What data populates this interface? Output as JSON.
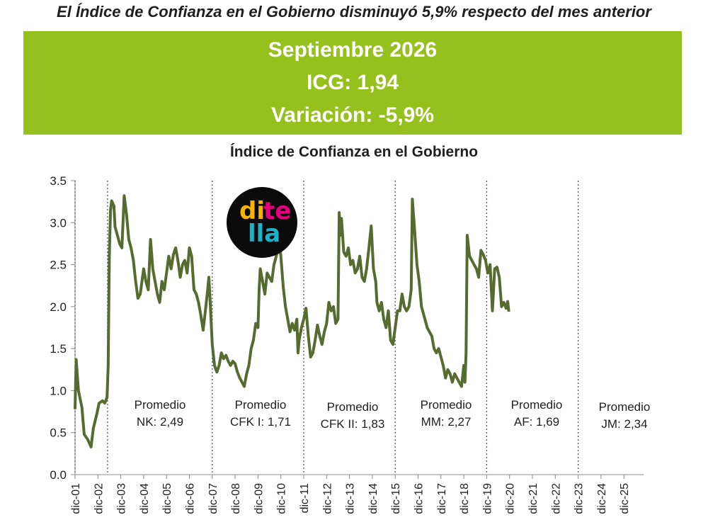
{
  "headline": "El Índice de Confianza en el Gobierno disminuyó 5,9% respecto del mes anterior",
  "banner": {
    "month": "Septiembre 2026",
    "icg": "ICG: 1,94",
    "variation": "Variación: -5,9%"
  },
  "logo": {
    "text": "ditella",
    "colors": [
      "#f6b400",
      "#e6007e",
      "#1bb3c7",
      "#7a3cff"
    ]
  },
  "chart_data": {
    "type": "line",
    "title": "Índice de Confianza en el Gobierno",
    "xlabel": "",
    "ylabel": "",
    "ylim": [
      0,
      3.5
    ],
    "yticks": [
      "0.0",
      "0.5",
      "1.0",
      "1.5",
      "2.0",
      "2.5",
      "3.0",
      "3.5"
    ],
    "x_tick_labels": [
      "dic-01",
      "dic-02",
      "dic-03",
      "dic-04",
      "dic-05",
      "dic-06",
      "dic-07",
      "dic-08",
      "dic-09",
      "dic-10",
      "dic-11",
      "dic-12",
      "dic-13",
      "dic-14",
      "dic-15",
      "dic-16",
      "dic-17",
      "dic-18",
      "dic-19",
      "dic-20",
      "dic-21",
      "dic-22",
      "dic-23",
      "dic-24",
      "dic-25"
    ],
    "line_color": "#556b2f",
    "grid": false,
    "period_dividers": [
      "dic-01",
      "dic-02 + 5 meses",
      "dic-07",
      "dic-11",
      "dic-15",
      "dic-19",
      "dic-23"
    ],
    "averages": [
      {
        "label": "Promedio",
        "value": "NK: 2,49"
      },
      {
        "label": "Promedio",
        "value": "CFK I: 1,71"
      },
      {
        "label": "Promedio",
        "value": "CFK II: 1,83"
      },
      {
        "label": "Promedio",
        "value": "MM: 2,27"
      },
      {
        "label": "Promedio",
        "value": "AF: 1,69"
      },
      {
        "label": "Promedio",
        "value": "JM: 2,34"
      }
    ],
    "series": [
      {
        "points": [
          [
            0,
            0.78
          ],
          [
            0.05,
            1.37
          ],
          [
            0.15,
            1.0
          ],
          [
            0.3,
            0.8
          ],
          [
            0.4,
            0.48
          ],
          [
            0.55,
            0.42
          ],
          [
            0.7,
            0.33
          ],
          [
            0.8,
            0.55
          ],
          [
            0.95,
            0.72
          ],
          [
            1.05,
            0.85
          ],
          [
            1.2,
            0.88
          ],
          [
            1.3,
            0.85
          ],
          [
            1.4,
            0.92
          ],
          [
            1.45,
            1.3
          ],
          [
            1.5,
            2.6
          ],
          [
            1.55,
            3.15
          ],
          [
            1.6,
            3.26
          ],
          [
            1.7,
            3.2
          ],
          [
            1.75,
            2.95
          ],
          [
            1.85,
            2.85
          ],
          [
            1.95,
            2.75
          ],
          [
            2.05,
            2.7
          ],
          [
            2.15,
            3.32
          ],
          [
            2.25,
            3.1
          ],
          [
            2.35,
            2.8
          ],
          [
            2.45,
            2.7
          ],
          [
            2.55,
            2.55
          ],
          [
            2.65,
            2.3
          ],
          [
            2.75,
            2.1
          ],
          [
            2.85,
            2.15
          ],
          [
            3.0,
            2.45
          ],
          [
            3.1,
            2.3
          ],
          [
            3.2,
            2.2
          ],
          [
            3.3,
            2.8
          ],
          [
            3.4,
            2.45
          ],
          [
            3.5,
            2.3
          ],
          [
            3.6,
            2.15
          ],
          [
            3.7,
            2.05
          ],
          [
            3.8,
            2.3
          ],
          [
            3.9,
            2.2
          ],
          [
            4.0,
            2.4
          ],
          [
            4.1,
            2.6
          ],
          [
            4.2,
            2.45
          ],
          [
            4.3,
            2.62
          ],
          [
            4.4,
            2.7
          ],
          [
            4.5,
            2.55
          ],
          [
            4.6,
            2.35
          ],
          [
            4.7,
            2.5
          ],
          [
            4.8,
            2.55
          ],
          [
            4.9,
            2.4
          ],
          [
            5.0,
            2.7
          ],
          [
            5.1,
            2.6
          ],
          [
            5.2,
            2.2
          ],
          [
            5.3,
            2.15
          ],
          [
            5.4,
            2.05
          ],
          [
            5.5,
            1.9
          ],
          [
            5.6,
            1.72
          ],
          [
            5.7,
            1.95
          ],
          [
            5.8,
            2.2
          ],
          [
            5.85,
            2.35
          ],
          [
            5.9,
            2.1
          ],
          [
            6.0,
            1.55
          ],
          [
            6.1,
            1.3
          ],
          [
            6.2,
            1.22
          ],
          [
            6.3,
            1.3
          ],
          [
            6.4,
            1.45
          ],
          [
            6.5,
            1.38
          ],
          [
            6.6,
            1.42
          ],
          [
            6.7,
            1.35
          ],
          [
            6.8,
            1.3
          ],
          [
            6.9,
            1.35
          ],
          [
            7.0,
            1.32
          ],
          [
            7.1,
            1.22
          ],
          [
            7.2,
            1.15
          ],
          [
            7.3,
            1.1
          ],
          [
            7.4,
            1.05
          ],
          [
            7.5,
            1.2
          ],
          [
            7.6,
            1.3
          ],
          [
            7.7,
            1.5
          ],
          [
            7.8,
            1.6
          ],
          [
            7.9,
            1.8
          ],
          [
            8.0,
            1.75
          ],
          [
            8.05,
            2.2
          ],
          [
            8.1,
            2.45
          ],
          [
            8.2,
            2.3
          ],
          [
            8.3,
            2.15
          ],
          [
            8.4,
            2.4
          ],
          [
            8.5,
            2.35
          ],
          [
            8.6,
            2.3
          ],
          [
            8.7,
            2.5
          ],
          [
            8.8,
            2.6
          ],
          [
            8.9,
            2.75
          ],
          [
            8.95,
            2.72
          ],
          [
            9.0,
            2.6
          ],
          [
            9.1,
            2.25
          ],
          [
            9.2,
            2.0
          ],
          [
            9.3,
            1.85
          ],
          [
            9.4,
            1.7
          ],
          [
            9.5,
            1.8
          ],
          [
            9.6,
            1.72
          ],
          [
            9.7,
            1.85
          ],
          [
            9.75,
            1.45
          ],
          [
            9.8,
            1.6
          ],
          [
            9.9,
            1.75
          ],
          [
            10.0,
            1.85
          ],
          [
            10.1,
            1.98
          ],
          [
            10.2,
            1.65
          ],
          [
            10.3,
            1.4
          ],
          [
            10.4,
            1.45
          ],
          [
            10.5,
            1.6
          ],
          [
            10.6,
            1.78
          ],
          [
            10.7,
            1.65
          ],
          [
            10.8,
            1.55
          ],
          [
            10.9,
            1.7
          ],
          [
            11.0,
            1.8
          ],
          [
            11.1,
            2.05
          ],
          [
            11.2,
            1.95
          ],
          [
            11.3,
            2.0
          ],
          [
            11.4,
            1.8
          ],
          [
            11.5,
            1.85
          ],
          [
            11.55,
            3.12
          ],
          [
            11.6,
            2.85
          ],
          [
            11.65,
            3.05
          ],
          [
            11.75,
            2.65
          ],
          [
            11.85,
            2.6
          ],
          [
            11.95,
            2.7
          ],
          [
            12.05,
            2.5
          ],
          [
            12.15,
            2.55
          ],
          [
            12.25,
            2.4
          ],
          [
            12.35,
            2.45
          ],
          [
            12.45,
            2.6
          ],
          [
            12.55,
            2.35
          ],
          [
            12.65,
            2.3
          ],
          [
            12.75,
            2.45
          ],
          [
            12.85,
            2.7
          ],
          [
            12.95,
            2.96
          ],
          [
            13.05,
            2.45
          ],
          [
            13.15,
            2.3
          ],
          [
            13.2,
            2.05
          ],
          [
            13.3,
            1.95
          ],
          [
            13.4,
            2.05
          ],
          [
            13.5,
            1.85
          ],
          [
            13.6,
            1.75
          ],
          [
            13.7,
            1.95
          ],
          [
            13.8,
            1.6
          ],
          [
            13.9,
            1.55
          ],
          [
            14.0,
            1.75
          ],
          [
            14.1,
            1.95
          ],
          [
            14.2,
            1.95
          ],
          [
            14.3,
            2.15
          ],
          [
            14.4,
            2.0
          ],
          [
            14.5,
            1.95
          ],
          [
            14.6,
            2.0
          ],
          [
            14.7,
            2.2
          ],
          [
            14.75,
            3.28
          ],
          [
            14.85,
            2.9
          ],
          [
            14.95,
            2.5
          ],
          [
            15.05,
            2.3
          ],
          [
            15.15,
            2.0
          ],
          [
            15.2,
            1.95
          ],
          [
            15.3,
            1.85
          ],
          [
            15.4,
            1.75
          ],
          [
            15.5,
            1.7
          ],
          [
            15.6,
            1.65
          ],
          [
            15.7,
            1.5
          ],
          [
            15.8,
            1.45
          ],
          [
            15.9,
            1.5
          ],
          [
            16.0,
            1.4
          ],
          [
            16.1,
            1.3
          ],
          [
            16.2,
            1.15
          ],
          [
            16.3,
            1.25
          ],
          [
            16.4,
            1.2
          ],
          [
            16.5,
            1.1
          ],
          [
            16.6,
            1.2
          ],
          [
            16.7,
            1.15
          ],
          [
            16.8,
            1.1
          ],
          [
            16.9,
            1.05
          ],
          [
            17.0,
            1.3
          ],
          [
            17.05,
            1.1
          ],
          [
            17.1,
            1.45
          ],
          [
            17.15,
            2.85
          ],
          [
            17.25,
            2.6
          ],
          [
            17.35,
            2.55
          ],
          [
            17.45,
            2.5
          ],
          [
            17.55,
            2.45
          ],
          [
            17.65,
            2.35
          ],
          [
            17.75,
            2.67
          ],
          [
            17.85,
            2.62
          ],
          [
            17.95,
            2.55
          ],
          [
            18.05,
            2.4
          ],
          [
            18.15,
            2.5
          ],
          [
            18.25,
            1.95
          ],
          [
            18.35,
            2.45
          ],
          [
            18.45,
            2.47
          ],
          [
            18.55,
            2.35
          ],
          [
            18.65,
            2.0
          ],
          [
            18.75,
            2.05
          ],
          [
            18.85,
            1.98
          ],
          [
            18.92,
            2.06
          ],
          [
            18.97,
            1.94
          ]
        ]
      }
    ]
  }
}
